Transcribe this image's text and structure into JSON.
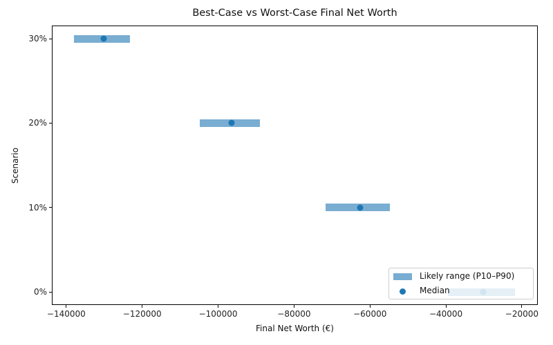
{
  "chart_data": {
    "type": "range-dot",
    "title": "Best-Case vs Worst-Case Final Net Worth",
    "xlabel": "Final Net Worth (€)",
    "ylabel": "Scenario",
    "xlim": [
      -143800,
      -15800
    ],
    "x_ticks": [
      -140000,
      -120000,
      -100000,
      -80000,
      -60000,
      -40000,
      -20000
    ],
    "x_tick_labels": [
      "−140000",
      "−120000",
      "−100000",
      "−80000",
      "−60000",
      "−40000",
      "−20000"
    ],
    "categories": [
      "0%",
      "10%",
      "20%",
      "30%"
    ],
    "series": [
      {
        "name": "Likely range (P10–P90)",
        "type": "horizontal-range",
        "color": "#1f77b4",
        "alpha": 0.6,
        "values": [
          {
            "category": "0%",
            "low": -39500,
            "high": -21800
          },
          {
            "category": "10%",
            "low": -71700,
            "high": -54800
          },
          {
            "category": "20%",
            "low": -104900,
            "high": -89000
          },
          {
            "category": "30%",
            "low": -138000,
            "high": -123200
          }
        ]
      },
      {
        "name": "Median",
        "type": "scatter",
        "color": "#1f77b4",
        "values": [
          {
            "category": "0%",
            "x": -30100
          },
          {
            "category": "10%",
            "x": -62600
          },
          {
            "category": "20%",
            "x": -96500
          },
          {
            "category": "30%",
            "x": -130200
          }
        ]
      }
    ],
    "legend": {
      "position": "lower right",
      "entries": [
        "Likely range (P10–P90)",
        "Median"
      ]
    },
    "grid": false
  },
  "labels": {
    "title": "Best-Case vs Worst-Case Final Net Worth",
    "xlabel": "Final Net Worth (€)",
    "ylabel": "Scenario",
    "legend_range": "Likely range (P10–P90)",
    "legend_median": "Median"
  }
}
